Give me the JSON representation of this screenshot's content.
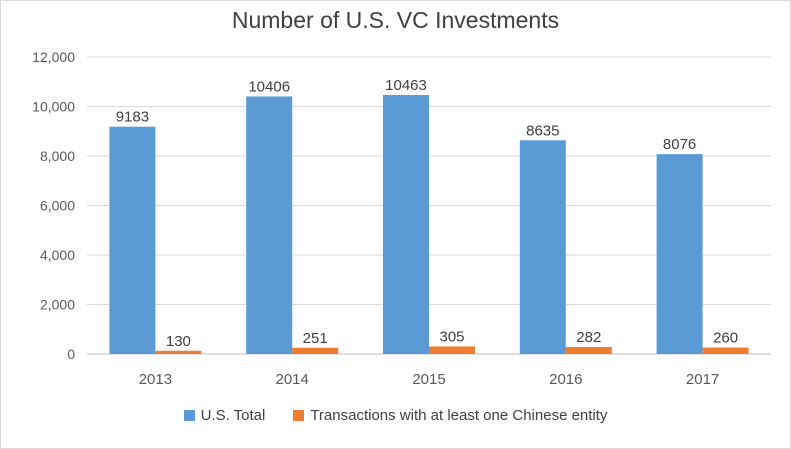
{
  "chart_data": {
    "type": "bar",
    "title": "Number of U.S. VC Investments",
    "categories": [
      "2013",
      "2014",
      "2015",
      "2016",
      "2017"
    ],
    "series": [
      {
        "name": "U.S. Total",
        "color": "#5b9bd5",
        "values": [
          9183,
          10406,
          10463,
          8635,
          8076
        ]
      },
      {
        "name": "Transactions with at least one Chinese entity",
        "color": "#ed7d31",
        "values": [
          130,
          251,
          305,
          282,
          260
        ]
      }
    ],
    "ylim": [
      0,
      12000
    ],
    "yticks": [
      0,
      2000,
      4000,
      6000,
      8000,
      10000,
      12000
    ],
    "ytick_labels": [
      "0",
      "2,000",
      "4,000",
      "6,000",
      "8,000",
      "10,000",
      "12,000"
    ],
    "grid": true,
    "legend_position": "bottom",
    "xlabel": "",
    "ylabel": ""
  }
}
